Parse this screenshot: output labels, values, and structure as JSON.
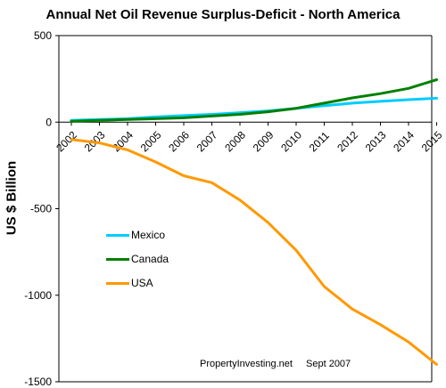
{
  "chart_data": {
    "type": "line",
    "title": "Annual Net Oil Revenue Surplus-Deficit - North America",
    "ylabel": "US $ Billion",
    "xlabel": "",
    "ylim": [
      -1500,
      500
    ],
    "yticks": [
      500,
      0,
      -500,
      -1000,
      -1500
    ],
    "ytick_labels": [
      "500",
      "0",
      "-500",
      "-1000",
      "-1500"
    ],
    "x": [
      "2002",
      "2003",
      "2004",
      "2005",
      "2006",
      "2007",
      "2008",
      "2009",
      "2010",
      "2011",
      "2012",
      "2013",
      "2014",
      "2015"
    ],
    "grid": false,
    "legend_position": "center-left",
    "series": [
      {
        "name": "Mexico",
        "color": "#00ccff",
        "values": [
          10,
          15,
          20,
          30,
          38,
          45,
          55,
          65,
          80,
          95,
          110,
          120,
          130,
          138
        ]
      },
      {
        "name": "Canada",
        "color": "#008000",
        "values": [
          5,
          10,
          15,
          20,
          25,
          35,
          45,
          60,
          80,
          110,
          140,
          165,
          195,
          245
        ]
      },
      {
        "name": "USA",
        "color": "#ff9900",
        "values": [
          -100,
          -120,
          -160,
          -230,
          -310,
          -350,
          -450,
          -580,
          -740,
          -950,
          -1080,
          -1170,
          -1270,
          -1400
        ]
      }
    ],
    "annotations": [
      "PropertyInvesting.net",
      "Sept 2007"
    ]
  }
}
